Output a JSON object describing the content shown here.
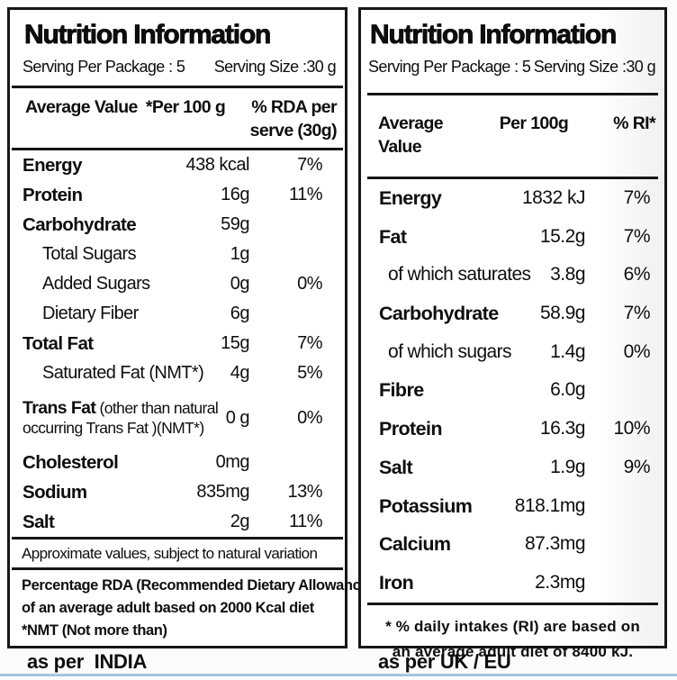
{
  "colors": {
    "border": "#161616",
    "text": "#0e0e0e",
    "bottom_bar": "#a5c6e1"
  },
  "panels": [
    {
      "id": "india",
      "title": "Nutrition Information",
      "serving": {
        "package": "Serving Per Package : 5",
        "size": "Serving Size :30 g"
      },
      "columns": {
        "label": "Average Value",
        "per": "*Per 100 g",
        "pct_line1": "% RDA per",
        "pct_line2": "serve (30g)"
      },
      "rows": [
        {
          "label": "Energy",
          "value": "438 kcal",
          "pct": "7%"
        },
        {
          "label": "Protein",
          "value": "16g",
          "pct": "11%"
        },
        {
          "label": "Carbohydrate",
          "value": "59g",
          "pct": ""
        },
        {
          "label": "Total Sugars",
          "value": "1g",
          "pct": "",
          "sub": true
        },
        {
          "label": "Added Sugars",
          "value": "0g",
          "pct": "0%",
          "sub": true
        },
        {
          "label": "Dietary Fiber",
          "value": "6g",
          "pct": "",
          "sub": true
        },
        {
          "label": "Total Fat",
          "value": "15g",
          "pct": "7%"
        },
        {
          "label": "Saturated Fat (NMT*)",
          "value": "4g",
          "pct": "5%",
          "sub": true
        },
        {
          "label": "Trans Fat",
          "note": "(other than natural occurring Trans Fat )(NMT*)",
          "value": "0 g",
          "pct": "0%"
        },
        {
          "label": "Cholesterol",
          "value": "0mg",
          "pct": ""
        },
        {
          "label": "Sodium",
          "value": "835mg",
          "pct": "13%"
        },
        {
          "label": "Salt",
          "value": "2g",
          "pct": "11%"
        }
      ],
      "note_band": "Approximate values, subject to natural variation",
      "footnote_lines": [
        "Percentage RDA (Recommended Dietary Allowance)",
        "of an average adult based on 2000 Kcal diet",
        "*NMT (Not more than)"
      ],
      "caption": "as per  INDIA"
    },
    {
      "id": "uk-eu",
      "title": "Nutrition Information",
      "serving": {
        "package": "Serving Per Package : 5",
        "size": "Serving Size :30 g"
      },
      "columns": {
        "label": "Average Value",
        "per": "Per 100g",
        "pct": "% RI*"
      },
      "rows": [
        {
          "label": "Energy",
          "value": "1832 kJ",
          "pct": "7%"
        },
        {
          "label": "Fat",
          "value": "15.2g",
          "pct": "7%"
        },
        {
          "label": "of which saturates",
          "value": "3.8g",
          "pct": "6%",
          "sub": true
        },
        {
          "label": "Carbohydrate",
          "value": "58.9g",
          "pct": "7%"
        },
        {
          "label": "of which sugars",
          "value": "1.4g",
          "pct": "0%",
          "sub": true
        },
        {
          "label": "Fibre",
          "value": "6.0g",
          "pct": ""
        },
        {
          "label": "Protein",
          "value": "16.3g",
          "pct": "10%"
        },
        {
          "label": "Salt",
          "value": "1.9g",
          "pct": "9%"
        },
        {
          "label": "Potassium",
          "value": "818.1mg",
          "pct": ""
        },
        {
          "label": "Calcium",
          "value": "87.3mg",
          "pct": ""
        },
        {
          "label": "Iron",
          "value": "2.3mg",
          "pct": ""
        }
      ],
      "footnote_lines": [
        "* % daily intakes (RI) are based on",
        "an average adult diet of 8400 kJ."
      ],
      "caption": "as per UK / EU"
    }
  ]
}
